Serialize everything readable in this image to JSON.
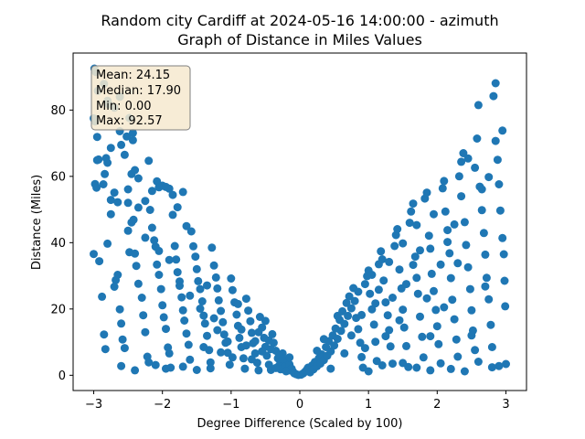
{
  "chart_data": {
    "type": "scatter",
    "title_line1": "Random city Cardiff at 2024-05-16 14:00:00  - azimuth",
    "title_line2": "Graph of Distance in Miles Values",
    "xlabel": "Degree Difference (Scaled by 100)",
    "ylabel": "Distance (Miles)",
    "xlim": [
      -3.3,
      3.3
    ],
    "ylim": [
      -4.6,
      97.2
    ],
    "xticks": [
      -3,
      -2,
      -1,
      0,
      1,
      2,
      3
    ],
    "yticks": [
      0,
      20,
      40,
      60,
      80
    ],
    "grid": false,
    "marker_color": "#1f77b4",
    "stats_box": {
      "mean": "Mean: 24.15",
      "median": "Median: 17.90",
      "min": "Min: 0.00",
      "max": "Max: 92.57"
    },
    "points": [
      [
        -2.99,
        92.5
      ],
      [
        -2.97,
        91.5
      ],
      [
        -3.0,
        77.5
      ],
      [
        -2.98,
        76.6
      ],
      [
        -2.95,
        71.9
      ],
      [
        -2.94,
        85.8
      ],
      [
        -2.85,
        87.9
      ],
      [
        -2.78,
        81.7
      ],
      [
        -2.62,
        84.0
      ],
      [
        -2.48,
        77.6
      ],
      [
        -2.43,
        73.1
      ],
      [
        -2.43,
        70.9
      ],
      [
        -2.52,
        72.0
      ],
      [
        -2.62,
        73.6
      ],
      [
        -2.7,
        80.7
      ],
      [
        -2.8,
        82.8
      ],
      [
        -2.98,
        57.7
      ],
      [
        -2.96,
        56.6
      ],
      [
        -2.95,
        64.9
      ],
      [
        -2.93,
        65.1
      ],
      [
        -2.86,
        57.6
      ],
      [
        -2.84,
        60.7
      ],
      [
        -2.82,
        65.5
      ],
      [
        -2.8,
        64.1
      ],
      [
        -2.75,
        68.6
      ],
      [
        -2.75,
        52.9
      ],
      [
        -2.7,
        55.1
      ],
      [
        -2.65,
        52.2
      ],
      [
        -2.6,
        69.5
      ],
      [
        -2.55,
        66.5
      ],
      [
        -2.5,
        56.1
      ],
      [
        -2.45,
        60.7
      ],
      [
        -2.4,
        61.9
      ],
      [
        -2.35,
        59.4
      ],
      [
        -2.25,
        52.6
      ],
      [
        -2.2,
        64.7
      ],
      [
        -2.15,
        55.6
      ],
      [
        -2.08,
        58.5
      ],
      [
        -2.05,
        56.7
      ],
      [
        -2.0,
        57.2
      ],
      [
        -1.95,
        56.8
      ],
      [
        -1.9,
        56.3
      ],
      [
        -1.85,
        54.4
      ],
      [
        -1.78,
        50.7
      ],
      [
        -1.7,
        55.3
      ],
      [
        -1.65,
        45.0
      ],
      [
        -3.0,
        36.6
      ],
      [
        -2.92,
        34.4
      ],
      [
        -2.88,
        23.7
      ],
      [
        -2.85,
        12.3
      ],
      [
        -2.83,
        7.9
      ],
      [
        -2.8,
        39.7
      ],
      [
        -2.75,
        48.6
      ],
      [
        -2.7,
        26.7
      ],
      [
        -2.68,
        28.7
      ],
      [
        -2.65,
        30.3
      ],
      [
        -2.62,
        19.9
      ],
      [
        -2.6,
        15.6
      ],
      [
        -2.58,
        10.8
      ],
      [
        -2.55,
        8.2
      ],
      [
        -2.5,
        43.6
      ],
      [
        -2.48,
        37.1
      ],
      [
        -2.45,
        46.1
      ],
      [
        -2.42,
        46.9
      ],
      [
        -2.4,
        36.7
      ],
      [
        -2.38,
        33.0
      ],
      [
        -2.35,
        27.6
      ],
      [
        -2.3,
        23.4
      ],
      [
        -2.28,
        18.1
      ],
      [
        -2.25,
        13.0
      ],
      [
        -2.22,
        5.6
      ],
      [
        -2.2,
        3.9
      ],
      [
        -2.18,
        49.9
      ],
      [
        -2.15,
        44.5
      ],
      [
        -2.12,
        40.7
      ],
      [
        -2.1,
        38.8
      ],
      [
        -2.08,
        33.4
      ],
      [
        -2.05,
        30.3
      ],
      [
        -2.02,
        26.0
      ],
      [
        -2.0,
        21.1
      ],
      [
        -1.98,
        17.5
      ],
      [
        -1.95,
        14.0
      ],
      [
        -1.92,
        8.4
      ],
      [
        -1.9,
        6.6
      ],
      [
        -1.88,
        2.3
      ],
      [
        -1.85,
        48.4
      ],
      [
        -1.82,
        39.0
      ],
      [
        -1.8,
        34.9
      ],
      [
        -1.78,
        31.1
      ],
      [
        -1.75,
        27.0
      ],
      [
        -1.72,
        23.5
      ],
      [
        -1.7,
        19.6
      ],
      [
        -1.68,
        16.5
      ],
      [
        -1.65,
        12.6
      ],
      [
        -1.62,
        9.2
      ],
      [
        -1.6,
        4.7
      ],
      [
        -1.58,
        43.4
      ],
      [
        -1.55,
        38.9
      ],
      [
        -1.52,
        35.8
      ],
      [
        -1.5,
        32.0
      ],
      [
        -1.48,
        28.4
      ],
      [
        -1.45,
        26.0
      ],
      [
        -1.42,
        22.3
      ],
      [
        -1.4,
        18.0
      ],
      [
        -1.38,
        15.6
      ],
      [
        -1.35,
        11.9
      ],
      [
        -1.32,
        7.6
      ],
      [
        -1.3,
        3.9
      ],
      [
        -1.28,
        38.5
      ],
      [
        -1.25,
        33.1
      ],
      [
        -1.22,
        29.5
      ],
      [
        -1.2,
        26.2
      ],
      [
        -1.18,
        22.6
      ],
      [
        -1.15,
        19.4
      ],
      [
        -1.12,
        16.0
      ],
      [
        -1.1,
        12.3
      ],
      [
        -1.08,
        9.8
      ],
      [
        -1.05,
        6.8
      ],
      [
        -1.02,
        3.2
      ],
      [
        -1.0,
        29.2
      ],
      [
        -0.98,
        25.7
      ],
      [
        -0.95,
        22.0
      ],
      [
        -0.92,
        18.3
      ],
      [
        -0.9,
        14.9
      ],
      [
        -0.88,
        11.3
      ],
      [
        -0.85,
        8.5
      ],
      [
        -0.82,
        5.1
      ],
      [
        -0.8,
        2.0
      ],
      [
        -0.78,
        23.1
      ],
      [
        -0.75,
        19.5
      ],
      [
        -0.72,
        16.3
      ],
      [
        -0.7,
        12.8
      ],
      [
        -0.68,
        9.7
      ],
      [
        -0.65,
        6.6
      ],
      [
        -0.62,
        3.8
      ],
      [
        -0.6,
        1.5
      ],
      [
        -0.58,
        17.6
      ],
      [
        -0.55,
        14.4
      ],
      [
        -0.52,
        11.3
      ],
      [
        -0.5,
        8.6
      ],
      [
        -0.48,
        5.9
      ],
      [
        -0.45,
        3.2
      ],
      [
        -0.42,
        1.6
      ],
      [
        -0.4,
        12.4
      ],
      [
        -0.38,
        9.8
      ],
      [
        -0.35,
        7.4
      ],
      [
        -0.32,
        5.1
      ],
      [
        -0.3,
        3.0
      ],
      [
        -0.28,
        1.8
      ],
      [
        -0.25,
        6.6
      ],
      [
        -0.22,
        4.4
      ],
      [
        -0.2,
        2.8
      ],
      [
        -0.18,
        1.4
      ],
      [
        -0.15,
        3.3
      ],
      [
        -0.12,
        2.0
      ],
      [
        -0.1,
        1.1
      ],
      [
        -0.08,
        0.6
      ],
      [
        -0.05,
        0.3
      ],
      [
        -0.02,
        0.1
      ],
      [
        -2.6,
        2.8
      ],
      [
        -2.4,
        1.5
      ],
      [
        -2.1,
        3.1
      ],
      [
        -1.95,
        2.0
      ],
      [
        -1.7,
        2.6
      ],
      [
        -1.5,
        1.6
      ],
      [
        -1.3,
        2.1
      ],
      [
        -1.15,
        6.9
      ],
      [
        -1.25,
        17.2
      ],
      [
        -1.45,
        20.1
      ],
      [
        -1.6,
        24.0
      ],
      [
        -1.75,
        28.3
      ],
      [
        -1.9,
        34.8
      ],
      [
        -2.05,
        37.5
      ],
      [
        -2.25,
        41.5
      ],
      [
        -2.35,
        50.6
      ],
      [
        -2.5,
        52.0
      ],
      [
        -0.9,
        21.5
      ],
      [
        -0.85,
        13.8
      ],
      [
        -0.7,
        4.8
      ],
      [
        -0.65,
        10.3
      ],
      [
        -0.55,
        7.2
      ],
      [
        -0.45,
        10.5
      ],
      [
        -0.35,
        2.2
      ],
      [
        -0.3,
        6.0
      ],
      [
        -1.05,
        10.2
      ],
      [
        -1.35,
        27.1
      ],
      [
        -0.98,
        5.4
      ],
      [
        -0.78,
        9.0
      ],
      [
        -0.6,
        13.0
      ],
      [
        -0.5,
        16.4
      ],
      [
        -0.42,
        7.9
      ],
      [
        -0.25,
        4.9
      ],
      [
        -0.2,
        1.2
      ],
      [
        -0.15,
        5.4
      ],
      [
        -1.2,
        13.6
      ],
      [
        -1.4,
        8.5
      ],
      [
        0.02,
        0.2
      ],
      [
        0.05,
        0.6
      ],
      [
        0.08,
        1.1
      ],
      [
        0.1,
        1.6
      ],
      [
        0.12,
        2.3
      ],
      [
        0.15,
        0.9
      ],
      [
        0.18,
        3.0
      ],
      [
        0.2,
        1.8
      ],
      [
        0.22,
        4.0
      ],
      [
        0.25,
        2.7
      ],
      [
        0.28,
        5.2
      ],
      [
        0.3,
        3.5
      ],
      [
        0.32,
        6.3
      ],
      [
        0.35,
        4.6
      ],
      [
        0.38,
        8.5
      ],
      [
        0.4,
        5.9
      ],
      [
        0.42,
        10.3
      ],
      [
        0.45,
        7.2
      ],
      [
        0.48,
        12.0
      ],
      [
        0.5,
        9.0
      ],
      [
        0.52,
        14.1
      ],
      [
        0.55,
        11.0
      ],
      [
        0.58,
        16.7
      ],
      [
        0.6,
        13.4
      ],
      [
        0.62,
        19.3
      ],
      [
        0.65,
        15.5
      ],
      [
        0.68,
        21.8
      ],
      [
        0.7,
        17.9
      ],
      [
        0.72,
        23.8
      ],
      [
        0.75,
        20.2
      ],
      [
        0.78,
        26.3
      ],
      [
        0.8,
        22.4
      ],
      [
        0.82,
        17.3
      ],
      [
        0.85,
        13.9
      ],
      [
        0.88,
        9.8
      ],
      [
        0.9,
        5.5
      ],
      [
        0.92,
        2.3
      ],
      [
        0.95,
        27.5
      ],
      [
        0.98,
        29.9
      ],
      [
        1.0,
        31.6
      ],
      [
        1.02,
        24.6
      ],
      [
        1.05,
        19.9
      ],
      [
        1.08,
        15.3
      ],
      [
        1.1,
        10.1
      ],
      [
        1.12,
        4.3
      ],
      [
        1.15,
        33.5
      ],
      [
        1.18,
        37.4
      ],
      [
        1.2,
        35.0
      ],
      [
        1.22,
        28.6
      ],
      [
        1.25,
        22.0
      ],
      [
        1.28,
        18.1
      ],
      [
        1.3,
        13.6
      ],
      [
        1.32,
        8.7
      ],
      [
        1.35,
        3.5
      ],
      [
        1.38,
        39.0
      ],
      [
        1.4,
        42.3
      ],
      [
        1.42,
        44.1
      ],
      [
        1.45,
        31.9
      ],
      [
        1.48,
        26.2
      ],
      [
        1.5,
        19.8
      ],
      [
        1.52,
        14.4
      ],
      [
        1.55,
        8.8
      ],
      [
        1.58,
        2.5
      ],
      [
        1.6,
        46.0
      ],
      [
        1.62,
        49.4
      ],
      [
        1.65,
        51.8
      ],
      [
        1.68,
        35.8
      ],
      [
        1.7,
        29.4
      ],
      [
        1.72,
        24.6
      ],
      [
        1.75,
        17.7
      ],
      [
        1.78,
        11.6
      ],
      [
        1.8,
        5.4
      ],
      [
        1.82,
        53.3
      ],
      [
        1.85,
        55.1
      ],
      [
        1.88,
        42.1
      ],
      [
        1.9,
        38.2
      ],
      [
        1.92,
        30.6
      ],
      [
        1.95,
        25.4
      ],
      [
        1.98,
        19.7
      ],
      [
        2.0,
        14.8
      ],
      [
        2.02,
        9.4
      ],
      [
        2.05,
        3.6
      ],
      [
        2.08,
        56.4
      ],
      [
        2.1,
        58.6
      ],
      [
        2.12,
        49.4
      ],
      [
        2.15,
        43.8
      ],
      [
        2.18,
        36.8
      ],
      [
        2.2,
        29.3
      ],
      [
        2.22,
        22.8
      ],
      [
        2.25,
        16.9
      ],
      [
        2.28,
        10.8
      ],
      [
        2.3,
        5.6
      ],
      [
        2.32,
        60.0
      ],
      [
        2.35,
        64.4
      ],
      [
        2.38,
        67.0
      ],
      [
        2.4,
        46.2
      ],
      [
        2.42,
        39.3
      ],
      [
        2.45,
        32.6
      ],
      [
        2.48,
        26.0
      ],
      [
        2.5,
        19.6
      ],
      [
        2.52,
        13.5
      ],
      [
        2.55,
        7.6
      ],
      [
        2.58,
        71.4
      ],
      [
        2.6,
        81.5
      ],
      [
        2.62,
        56.9
      ],
      [
        2.65,
        49.8
      ],
      [
        2.68,
        42.9
      ],
      [
        2.7,
        36.4
      ],
      [
        2.72,
        29.4
      ],
      [
        2.75,
        22.9
      ],
      [
        2.78,
        15.2
      ],
      [
        2.8,
        8.5
      ],
      [
        2.82,
        84.2
      ],
      [
        2.85,
        88.1
      ],
      [
        2.88,
        65.0
      ],
      [
        2.9,
        57.6
      ],
      [
        2.92,
        49.7
      ],
      [
        2.95,
        41.4
      ],
      [
        2.97,
        36.5
      ],
      [
        2.98,
        28.5
      ],
      [
        2.99,
        20.8
      ],
      [
        3.0,
        3.4
      ],
      [
        2.95,
        73.8
      ],
      [
        2.85,
        70.7
      ],
      [
        2.75,
        59.8
      ],
      [
        2.65,
        56.1
      ],
      [
        2.55,
        62.6
      ],
      [
        2.45,
        65.4
      ],
      [
        2.35,
        54.0
      ],
      [
        2.25,
        45.5
      ],
      [
        2.15,
        40.2
      ],
      [
        2.05,
        33.4
      ],
      [
        1.95,
        48.6
      ],
      [
        1.85,
        23.2
      ],
      [
        1.75,
        37.7
      ],
      [
        1.65,
        33.3
      ],
      [
        1.55,
        27.5
      ],
      [
        1.45,
        16.6
      ],
      [
        1.35,
        23.4
      ],
      [
        1.25,
        11.8
      ],
      [
        1.15,
        25.8
      ],
      [
        1.05,
        30.3
      ],
      [
        0.95,
        8.2
      ],
      [
        0.85,
        25.2
      ],
      [
        0.75,
        12.0
      ],
      [
        0.65,
        6.6
      ],
      [
        0.55,
        17.9
      ],
      [
        0.45,
        2.0
      ],
      [
        0.35,
        10.9
      ],
      [
        0.25,
        7.4
      ],
      [
        2.2,
        1.9
      ],
      [
        2.4,
        1.2
      ],
      [
        2.6,
        4.1
      ],
      [
        2.8,
        2.4
      ],
      [
        2.9,
        2.8
      ],
      [
        1.9,
        1.5
      ],
      [
        1.7,
        2.3
      ],
      [
        1.5,
        3.7
      ],
      [
        1.2,
        3.0
      ],
      [
        1.0,
        1.2
      ],
      [
        2.7,
        26.8
      ],
      [
        2.5,
        12.0
      ],
      [
        2.3,
        33.8
      ],
      [
        2.1,
        20.5
      ],
      [
        1.9,
        11.8
      ],
      [
        1.7,
        45.3
      ],
      [
        1.5,
        39.8
      ],
      [
        1.3,
        34.2
      ],
      [
        1.1,
        21.7
      ],
      [
        0.9,
        18.2
      ]
    ]
  }
}
